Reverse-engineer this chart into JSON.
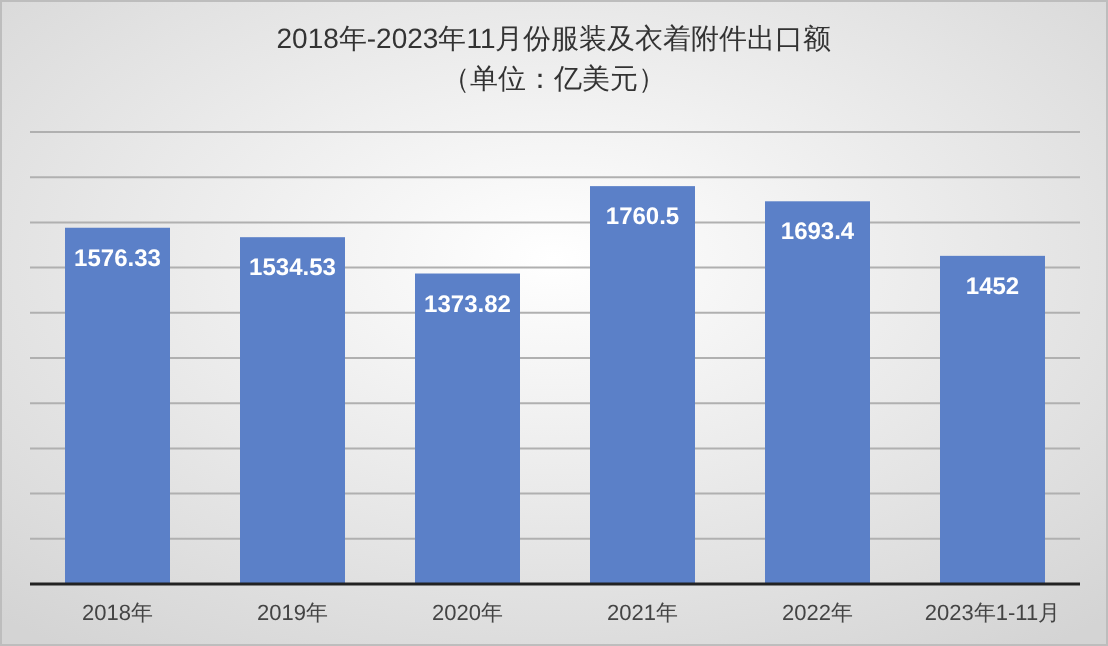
{
  "chart_data": {
    "type": "bar",
    "title": "2018年-2023年11月份服装及衣着附件出口额",
    "subtitle": "（单位：亿美元）",
    "categories": [
      "2018年",
      "2019年",
      "2020年",
      "2021年",
      "2022年",
      "2023年1-11月"
    ],
    "values": [
      1576.33,
      1534.53,
      1373.82,
      1760.5,
      1693.4,
      1452
    ],
    "color": "#5b80c8",
    "data_labels": true,
    "ylim": [
      0,
      2000
    ],
    "yticks": [
      {
        "value": 0,
        "label": null
      },
      {
        "value": 200,
        "label": null
      },
      {
        "value": 400,
        "label": null
      },
      {
        "value": 600,
        "label": null
      },
      {
        "value": 800,
        "label": null
      },
      {
        "value": 1000,
        "label": null
      },
      {
        "value": 1200,
        "label": null
      },
      {
        "value": 1400,
        "label": null
      },
      {
        "value": 1600,
        "label": null
      },
      {
        "value": 1800,
        "label": null
      },
      {
        "value": 2000,
        "label": null
      }
    ],
    "grid": "y",
    "tick_labels": "x"
  }
}
